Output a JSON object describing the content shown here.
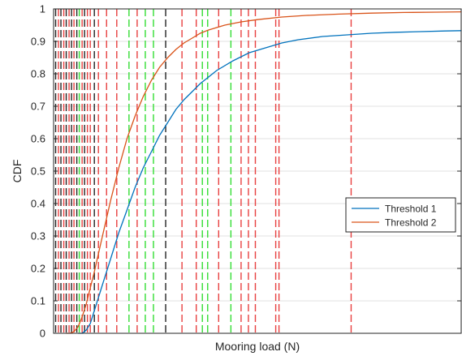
{
  "chart_data": {
    "type": "line",
    "title": "",
    "xlabel": "Mooring load (N)",
    "ylabel": "CDF",
    "ylim": [
      0,
      1
    ],
    "yticks": [
      0,
      0.1,
      0.2,
      0.3,
      0.4,
      0.5,
      0.6,
      0.7,
      0.8,
      0.9,
      1
    ],
    "ytick_labels": [
      "0",
      "0.1",
      "0.2",
      "0.3",
      "0.4",
      "0.5",
      "0.6",
      "0.7",
      "0.8",
      "0.9",
      "1"
    ],
    "xticks_shown": false,
    "grid": "horizontal",
    "legend_position": "right, lower-middle",
    "x_scale_note": "x axis has no tick labels; x values below are relative load positions on an arbitrary 0-100 scale",
    "xlim": [
      0,
      100
    ],
    "series": [
      {
        "name": "Threshold 1",
        "color": "#0072bd",
        "x": [
          6,
          7,
          8,
          9,
          10,
          12,
          14,
          16,
          18,
          20,
          22,
          24,
          26,
          28,
          30,
          32,
          34,
          36,
          38,
          40,
          44,
          48,
          52,
          56,
          60,
          66,
          72,
          78,
          84,
          90,
          96,
          100
        ],
        "y": [
          0.0,
          0.0,
          0.01,
          0.03,
          0.07,
          0.15,
          0.23,
          0.31,
          0.38,
          0.45,
          0.51,
          0.56,
          0.61,
          0.65,
          0.69,
          0.72,
          0.745,
          0.77,
          0.79,
          0.81,
          0.84,
          0.865,
          0.88,
          0.895,
          0.905,
          0.915,
          0.92,
          0.925,
          0.928,
          0.93,
          0.932,
          0.933
        ]
      },
      {
        "name": "Threshold 2",
        "color": "#d95319",
        "x": [
          3,
          4,
          5,
          6,
          7,
          8,
          10,
          12,
          14,
          16,
          18,
          20,
          22,
          24,
          26,
          28,
          30,
          32,
          34,
          36,
          38,
          42,
          46,
          50,
          56,
          62,
          70,
          78,
          86,
          94,
          100
        ],
        "y": [
          0.0,
          0.0,
          0.005,
          0.02,
          0.05,
          0.09,
          0.19,
          0.3,
          0.41,
          0.51,
          0.6,
          0.67,
          0.73,
          0.78,
          0.82,
          0.85,
          0.875,
          0.895,
          0.91,
          0.925,
          0.935,
          0.95,
          0.96,
          0.967,
          0.975,
          0.98,
          0.984,
          0.987,
          0.989,
          0.99,
          0.991
        ]
      }
    ],
    "vertical_lines": [
      {
        "x": 0.5,
        "color": "black"
      },
      {
        "x": 1.2,
        "color": "red"
      },
      {
        "x": 1.8,
        "color": "black"
      },
      {
        "x": 2.5,
        "color": "red"
      },
      {
        "x": 3.1,
        "color": "black"
      },
      {
        "x": 3.8,
        "color": "red"
      },
      {
        "x": 4.4,
        "color": "black"
      },
      {
        "x": 5.0,
        "color": "red"
      },
      {
        "x": 5.7,
        "color": "black"
      },
      {
        "x": 6.3,
        "color": "green"
      },
      {
        "x": 7.0,
        "color": "red"
      },
      {
        "x": 7.6,
        "color": "black"
      },
      {
        "x": 8.3,
        "color": "red"
      },
      {
        "x": 9.0,
        "color": "red"
      },
      {
        "x": 10.0,
        "color": "black"
      },
      {
        "x": 11.0,
        "color": "red"
      },
      {
        "x": 13.0,
        "color": "red"
      },
      {
        "x": 15.5,
        "color": "red"
      },
      {
        "x": 18.5,
        "color": "green"
      },
      {
        "x": 20.5,
        "color": "red"
      },
      {
        "x": 22.5,
        "color": "green"
      },
      {
        "x": 24.5,
        "color": "green"
      },
      {
        "x": 27.5,
        "color": "black"
      },
      {
        "x": 31.5,
        "color": "red"
      },
      {
        "x": 35.0,
        "color": "red"
      },
      {
        "x": 36.5,
        "color": "green"
      },
      {
        "x": 37.8,
        "color": "green"
      },
      {
        "x": 40.5,
        "color": "red"
      },
      {
        "x": 43.5,
        "color": "green"
      },
      {
        "x": 46.0,
        "color": "red"
      },
      {
        "x": 47.8,
        "color": "red"
      },
      {
        "x": 49.5,
        "color": "red"
      },
      {
        "x": 54.5,
        "color": "red"
      },
      {
        "x": 55.3,
        "color": "red"
      },
      {
        "x": 73.0,
        "color": "red"
      }
    ],
    "colors": {
      "red": "#e84040",
      "green": "#33dd33",
      "black": "#222222",
      "grid": "#e0e0e0",
      "axis": "#262626"
    }
  }
}
